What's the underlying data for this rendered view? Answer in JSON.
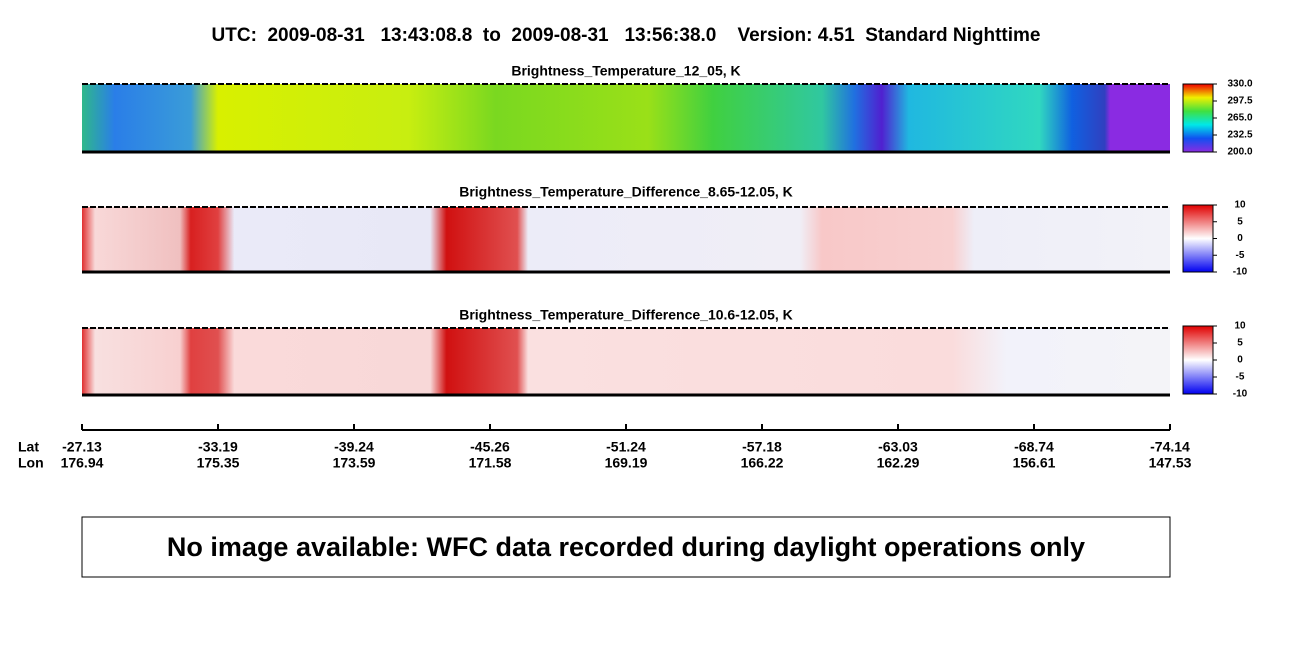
{
  "header": {
    "title": "UTC:  2009-08-31   13:43:08.8  to  2009-08-31   13:56:38.0    Version: 4.51  Standard Nighttime"
  },
  "panels": [
    {
      "title": "Brightness_Temperature_12_05, K",
      "colorbar_ticks": [
        {
          "value": 200,
          "label": "200.0"
        },
        {
          "value": 232.5,
          "label": "232.5"
        },
        {
          "value": 265,
          "label": "265.0"
        },
        {
          "value": 297.5,
          "label": "297.5"
        },
        {
          "value": 330,
          "label": "330.0"
        }
      ]
    },
    {
      "title": "Brightness_Temperature_Difference_8.65-12.05, K",
      "colorbar_ticks": [
        -10,
        -5,
        0,
        5,
        10
      ]
    },
    {
      "title": "Brightness_Temperature_Difference_10.6-12.05, K",
      "colorbar_ticks": [
        -10,
        -5,
        0,
        5,
        10
      ]
    }
  ],
  "axis": {
    "lat_label": "Lat",
    "lon_label": "Lon",
    "lat": [
      -27.13,
      -33.19,
      -39.24,
      -45.26,
      -51.24,
      -57.18,
      -63.03,
      -68.74,
      -74.14
    ],
    "lon": [
      176.94,
      175.35,
      173.59,
      171.58,
      169.19,
      166.22,
      162.29,
      156.61,
      147.53
    ]
  },
  "notice": "No image available: WFC data recorded during daylight operations only"
}
